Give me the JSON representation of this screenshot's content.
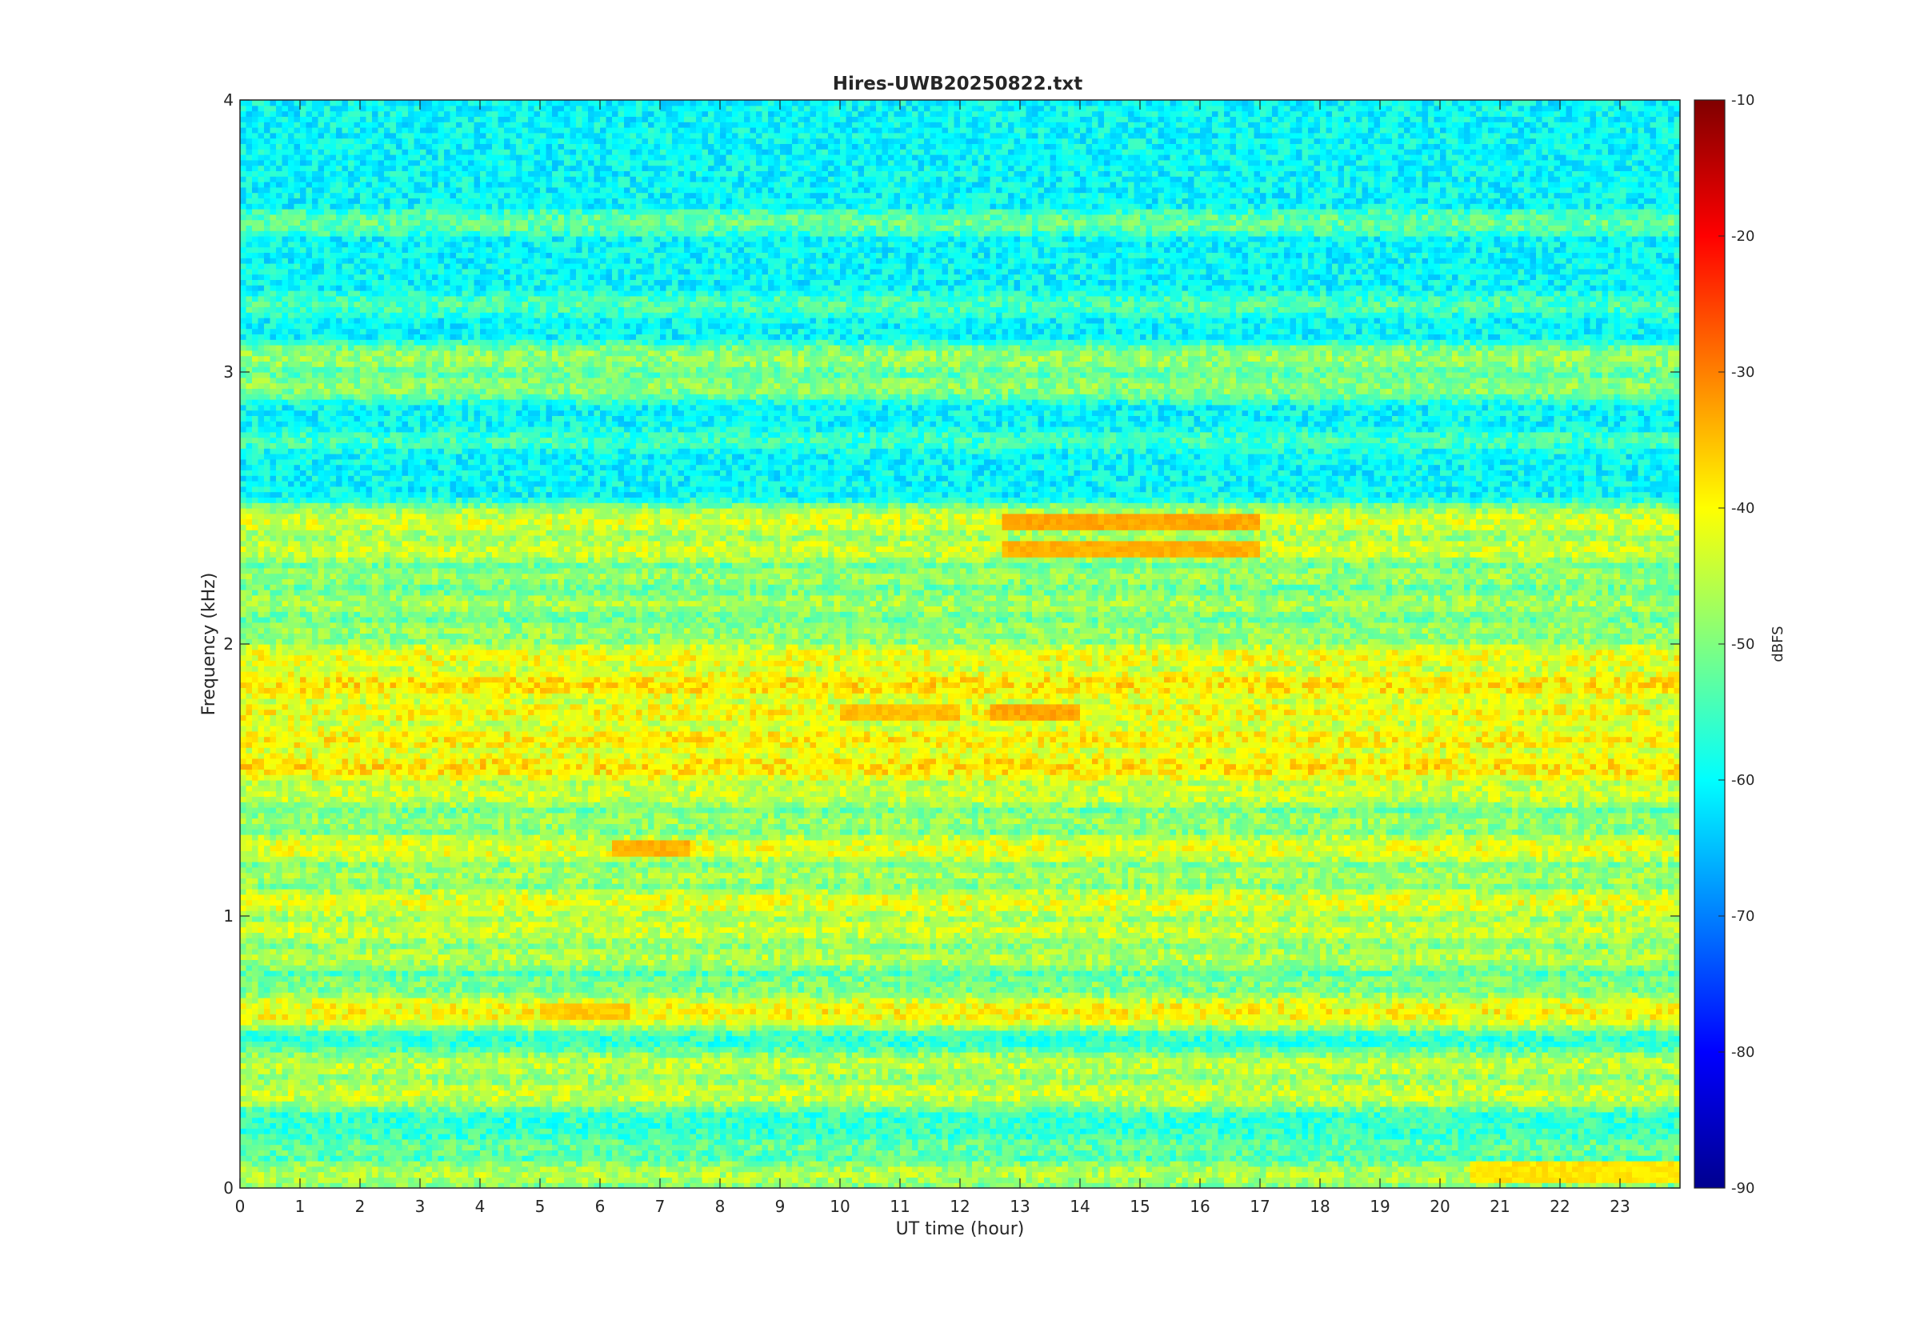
{
  "chart_data": {
    "type": "heatmap",
    "title": "Hires-UWB20250822.txt",
    "xlabel": "UT time (hour)",
    "ylabel": "Frequency (kHz)",
    "xlim": [
      0,
      24
    ],
    "ylim": [
      0,
      4
    ],
    "x_ticks": [
      "0",
      "1",
      "2",
      "3",
      "4",
      "5",
      "6",
      "7",
      "8",
      "9",
      "10",
      "11",
      "12",
      "13",
      "14",
      "15",
      "16",
      "17",
      "18",
      "19",
      "20",
      "21",
      "22",
      "23"
    ],
    "y_ticks": [
      "0",
      "1",
      "2",
      "3",
      "4"
    ],
    "colorbar": {
      "label": "dBFS",
      "range": [
        -90,
        -10
      ],
      "ticks": [
        "-10",
        "-20",
        "-30",
        "-40",
        "-50",
        "-60",
        "-70",
        "-80",
        "-90"
      ],
      "colormap": "jet"
    },
    "bands": [
      {
        "freq_khz": 0.05,
        "level_dbfs": -46
      },
      {
        "freq_khz": 0.15,
        "level_dbfs": -52
      },
      {
        "freq_khz": 0.35,
        "level_dbfs": -44
      },
      {
        "freq_khz": 0.45,
        "level_dbfs": -45
      },
      {
        "freq_khz": 0.65,
        "level_dbfs": -40
      },
      {
        "freq_khz": 0.75,
        "level_dbfs": -50
      },
      {
        "freq_khz": 0.85,
        "level_dbfs": -46
      },
      {
        "freq_khz": 0.95,
        "level_dbfs": -44
      },
      {
        "freq_khz": 1.05,
        "level_dbfs": -42
      },
      {
        "freq_khz": 1.15,
        "level_dbfs": -47
      },
      {
        "freq_khz": 1.25,
        "level_dbfs": -42
      },
      {
        "freq_khz": 1.35,
        "level_dbfs": -48
      },
      {
        "freq_khz": 1.45,
        "level_dbfs": -44
      },
      {
        "freq_khz": 1.55,
        "level_dbfs": -38
      },
      {
        "freq_khz": 1.65,
        "level_dbfs": -39
      },
      {
        "freq_khz": 1.75,
        "level_dbfs": -40
      },
      {
        "freq_khz": 1.85,
        "level_dbfs": -38
      },
      {
        "freq_khz": 1.95,
        "level_dbfs": -41
      },
      {
        "freq_khz": 2.05,
        "level_dbfs": -48
      },
      {
        "freq_khz": 2.15,
        "level_dbfs": -47
      },
      {
        "freq_khz": 2.25,
        "level_dbfs": -48
      },
      {
        "freq_khz": 2.35,
        "level_dbfs": -44
      },
      {
        "freq_khz": 2.45,
        "level_dbfs": -43
      },
      {
        "freq_khz": 2.75,
        "level_dbfs": -55
      },
      {
        "freq_khz": 2.95,
        "level_dbfs": -49
      },
      {
        "freq_khz": 3.05,
        "level_dbfs": -48
      },
      {
        "freq_khz": 3.25,
        "level_dbfs": -54
      },
      {
        "freq_khz": 3.55,
        "level_dbfs": -52
      }
    ],
    "hotspots": [
      {
        "freq_khz": 2.45,
        "t_start": 12.7,
        "t_end": 17.0,
        "level_dbfs": -33
      },
      {
        "freq_khz": 2.35,
        "t_start": 12.7,
        "t_end": 17.0,
        "level_dbfs": -34
      },
      {
        "freq_khz": 1.75,
        "t_start": 12.5,
        "t_end": 14.0,
        "level_dbfs": -33
      },
      {
        "freq_khz": 1.75,
        "t_start": 10.0,
        "t_end": 12.0,
        "level_dbfs": -35
      },
      {
        "freq_khz": 1.25,
        "t_start": 6.2,
        "t_end": 7.5,
        "level_dbfs": -34
      },
      {
        "freq_khz": 0.65,
        "t_start": 5.0,
        "t_end": 6.5,
        "level_dbfs": -36
      },
      {
        "freq_khz": 0.05,
        "t_start": 20.5,
        "t_end": 24.0,
        "level_dbfs": -38
      }
    ]
  }
}
